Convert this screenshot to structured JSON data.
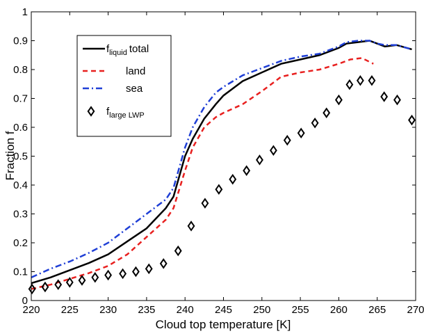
{
  "chart_data": {
    "type": "line",
    "xlabel": "Cloud top temperature [K]",
    "ylabel": "Fraction f",
    "xlim": [
      220,
      270
    ],
    "xticks": [
      220,
      225,
      230,
      235,
      240,
      245,
      250,
      255,
      260,
      265,
      270
    ],
    "ylim": [
      0,
      1
    ],
    "yticks": [
      0,
      0.1,
      0.2,
      0.3,
      0.4,
      0.5,
      0.6,
      0.7,
      0.8,
      0.9,
      1
    ],
    "legend": "upper left",
    "series": [
      {
        "name": "f",
        "name_sub": "liquid",
        "name_after": "total",
        "color": "#000000",
        "style": "solid",
        "x": [
          220,
          222.5,
          225,
          227.5,
          230,
          232.5,
          235,
          237.5,
          238.5,
          240,
          241,
          242.5,
          244,
          245,
          247.5,
          250,
          252.5,
          255,
          257.5,
          260,
          261,
          262.5,
          264,
          265,
          266,
          267.5,
          269.5
        ],
        "values": [
          0.06,
          0.08,
          0.105,
          0.13,
          0.16,
          0.205,
          0.25,
          0.32,
          0.36,
          0.5,
          0.56,
          0.63,
          0.68,
          0.71,
          0.76,
          0.79,
          0.82,
          0.835,
          0.85,
          0.875,
          0.89,
          0.895,
          0.9,
          0.89,
          0.88,
          0.885,
          0.87
        ]
      },
      {
        "name": "land",
        "color": "#e8201f",
        "style": "dashed",
        "x": [
          220,
          222.5,
          225,
          227.5,
          230,
          232.5,
          235,
          237.5,
          238.5,
          240,
          241,
          242.5,
          244,
          245,
          247.5,
          250,
          252.5,
          255,
          257.5,
          260,
          261.5,
          263,
          264.5
        ],
        "values": [
          0.04,
          0.055,
          0.075,
          0.095,
          0.12,
          0.16,
          0.22,
          0.28,
          0.32,
          0.45,
          0.53,
          0.6,
          0.635,
          0.65,
          0.68,
          0.725,
          0.775,
          0.79,
          0.8,
          0.82,
          0.835,
          0.84,
          0.82
        ]
      },
      {
        "name": "sea",
        "color": "#1f3fd6",
        "style": "dashdot",
        "x": [
          220,
          222.5,
          225,
          227.5,
          230,
          232.5,
          235,
          237.5,
          238.5,
          240,
          241,
          242.5,
          244,
          245,
          247.5,
          250,
          252.5,
          255,
          257.5,
          260,
          261,
          262.5,
          264,
          265,
          266,
          267.5,
          269.5
        ],
        "values": [
          0.08,
          0.11,
          0.135,
          0.165,
          0.2,
          0.25,
          0.3,
          0.35,
          0.39,
          0.53,
          0.6,
          0.67,
          0.72,
          0.74,
          0.78,
          0.805,
          0.83,
          0.845,
          0.855,
          0.88,
          0.895,
          0.9,
          0.9,
          0.89,
          0.885,
          0.885,
          0.87
        ]
      },
      {
        "name": "f",
        "name_sub": "large LWP",
        "color": "#000000",
        "style": "diamond",
        "x": [
          220.1,
          221.8,
          223.5,
          225,
          226.6,
          228.3,
          230,
          231.9,
          233.6,
          235.3,
          237.2,
          239.1,
          240.8,
          242.6,
          244.4,
          246.2,
          248,
          249.7,
          251.5,
          253.3,
          255.1,
          256.9,
          258.4,
          260,
          261.4,
          262.8,
          264.3,
          265.9,
          267.6,
          269.5
        ],
        "values": [
          0.04,
          0.047,
          0.055,
          0.063,
          0.07,
          0.08,
          0.088,
          0.093,
          0.1,
          0.11,
          0.128,
          0.172,
          0.258,
          0.337,
          0.385,
          0.42,
          0.45,
          0.487,
          0.52,
          0.555,
          0.58,
          0.615,
          0.65,
          0.695,
          0.748,
          0.762,
          0.762,
          0.706,
          0.695,
          0.625
        ]
      }
    ]
  }
}
